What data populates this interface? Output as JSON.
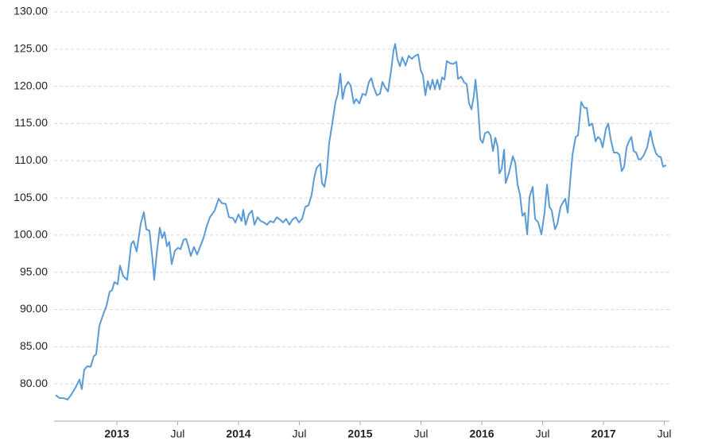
{
  "chart_data": {
    "type": "line",
    "x": [
      2012.497,
      2012.529,
      2012.562,
      2012.595,
      2012.627,
      2012.66,
      2012.693,
      2012.712,
      2012.732,
      2012.758,
      2012.784,
      2012.81,
      2012.83,
      2012.856,
      2012.889,
      2012.915,
      2012.941,
      2012.961,
      2012.98,
      2013.007,
      2013.026,
      2013.052,
      2013.085,
      2013.118,
      2013.137,
      2013.163,
      2013.196,
      2013.222,
      2013.242,
      2013.268,
      2013.294,
      2013.307,
      2013.327,
      2013.353,
      2013.373,
      2013.392,
      2013.412,
      2013.431,
      2013.451,
      2013.477,
      2013.503,
      2013.523,
      2013.549,
      2013.569,
      2013.588,
      2013.608,
      2013.634,
      2013.66,
      2013.686,
      2013.712,
      2013.739,
      2013.765,
      2013.804,
      2013.837,
      2013.863,
      2013.895,
      2013.922,
      2013.954,
      2013.974,
      2014.0,
      2014.026,
      2014.039,
      2014.059,
      2014.085,
      2014.111,
      2014.131,
      2014.157,
      2014.183,
      2014.209,
      2014.235,
      2014.261,
      2014.288,
      2014.314,
      2014.34,
      2014.366,
      2014.392,
      2014.418,
      2014.444,
      2014.471,
      2014.497,
      2014.523,
      2014.549,
      2014.575,
      2014.601,
      2014.621,
      2014.641,
      2014.673,
      2014.686,
      2014.706,
      2014.725,
      2014.745,
      2014.771,
      2014.797,
      2014.817,
      2014.837,
      2014.856,
      2014.876,
      2014.902,
      2014.922,
      2014.948,
      2014.967,
      2014.993,
      2015.02,
      2015.046,
      2015.072,
      2015.092,
      2015.111,
      2015.137,
      2015.163,
      2015.183,
      2015.203,
      2015.229,
      2015.255,
      2015.275,
      2015.288,
      2015.307,
      2015.327,
      2015.346,
      2015.373,
      2015.399,
      2015.425,
      2015.451,
      2015.477,
      2015.497,
      2015.516,
      2015.536,
      2015.556,
      2015.575,
      2015.595,
      2015.614,
      2015.634,
      2015.654,
      2015.673,
      2015.693,
      2015.712,
      2015.739,
      2015.765,
      2015.791,
      2015.804,
      2015.83,
      2015.856,
      2015.876,
      2015.895,
      2015.915,
      2015.935,
      2015.948,
      2015.967,
      2015.987,
      2016.007,
      2016.026,
      2016.052,
      2016.072,
      2016.092,
      2016.111,
      2016.131,
      2016.144,
      2016.163,
      2016.183,
      2016.196,
      2016.222,
      2016.255,
      2016.275,
      2016.294,
      2016.314,
      2016.333,
      2016.353,
      2016.373,
      2016.392,
      2016.418,
      2016.438,
      2016.464,
      2016.49,
      2016.516,
      2016.536,
      2016.556,
      2016.575,
      2016.601,
      2016.621,
      2016.647,
      2016.667,
      2016.686,
      2016.706,
      2016.725,
      2016.745,
      2016.771,
      2016.791,
      2016.817,
      2016.843,
      2016.863,
      2016.882,
      2016.908,
      2016.935,
      2016.954,
      2016.974,
      2016.993,
      2017.02,
      2017.039,
      2017.059,
      2017.085,
      2017.111,
      2017.131,
      2017.15,
      2017.17,
      2017.19,
      2017.209,
      2017.229,
      2017.248,
      2017.268,
      2017.288,
      2017.307,
      2017.333,
      2017.359,
      2017.386,
      2017.405,
      2017.431,
      2017.451,
      2017.471,
      2017.49,
      2017.516
    ],
    "series": [
      {
        "color": "#5b9bd5",
        "values": [
          78.5,
          78.1,
          78.1,
          77.9,
          78.6,
          79.5,
          80.6,
          79.3,
          81.9,
          82.4,
          82.3,
          83.7,
          84.0,
          87.8,
          89.4,
          90.5,
          92.4,
          92.6,
          93.7,
          93.4,
          95.9,
          94.5,
          94.0,
          98.8,
          99.2,
          97.8,
          101.5,
          103.1,
          100.8,
          100.6,
          96.6,
          94.0,
          97.4,
          101.0,
          99.6,
          100.4,
          98.5,
          99.1,
          96.1,
          97.9,
          98.3,
          98.1,
          99.4,
          99.5,
          98.5,
          97.2,
          98.4,
          97.4,
          98.5,
          99.6,
          101.2,
          102.4,
          103.3,
          104.9,
          104.3,
          104.2,
          102.4,
          102.3,
          101.7,
          102.8,
          101.9,
          103.4,
          101.4,
          102.8,
          103.3,
          101.4,
          102.4,
          101.9,
          101.7,
          101.4,
          101.9,
          101.7,
          102.4,
          102.1,
          101.7,
          102.2,
          101.4,
          102.1,
          102.4,
          101.7,
          102.2,
          103.8,
          104.0,
          105.4,
          107.6,
          109.0,
          109.6,
          107.0,
          106.5,
          108.3,
          112.4,
          115.0,
          117.9,
          119.0,
          121.7,
          118.3,
          119.9,
          120.6,
          120.1,
          117.7,
          118.3,
          117.7,
          119.0,
          118.8,
          120.6,
          121.1,
          119.9,
          118.8,
          119.0,
          120.6,
          119.9,
          119.3,
          122.2,
          124.9,
          125.7,
          123.6,
          122.7,
          123.9,
          122.8,
          124.1,
          123.7,
          124.1,
          124.3,
          122.2,
          121.5,
          118.8,
          120.7,
          119.6,
          120.9,
          119.6,
          120.9,
          119.6,
          121.2,
          120.9,
          123.4,
          123.1,
          123.0,
          123.3,
          121.0,
          121.3,
          120.5,
          120.3,
          117.7,
          116.9,
          118.8,
          120.9,
          117.7,
          112.9,
          112.4,
          113.7,
          113.9,
          113.4,
          111.3,
          113.1,
          111.8,
          108.3,
          108.9,
          111.5,
          107.0,
          108.3,
          110.6,
          109.7,
          106.8,
          105.4,
          102.6,
          103.0,
          100.1,
          105.1,
          106.5,
          102.2,
          101.7,
          100.1,
          103.1,
          106.8,
          103.8,
          103.3,
          100.8,
          101.5,
          103.8,
          104.4,
          104.9,
          103.0,
          107.0,
          110.8,
          113.2,
          113.4,
          117.9,
          117.1,
          117.1,
          114.7,
          115.0,
          112.6,
          113.2,
          112.9,
          111.8,
          114.3,
          115.0,
          112.9,
          111.1,
          111.1,
          110.8,
          108.6,
          109.2,
          111.8,
          112.6,
          113.2,
          111.3,
          111.1,
          110.2,
          110.2,
          110.8,
          111.8,
          114.0,
          112.4,
          111.0,
          110.6,
          110.5,
          109.2,
          109.4
        ]
      }
    ],
    "xlim": [
      2012.484,
      2017.542
    ],
    "xticks": [
      2013,
      {
        "value": 2013.5,
        "label": "Jul"
      },
      2014,
      {
        "value": 2014.5,
        "label": "Jul"
      },
      2015,
      {
        "value": 2015.5,
        "label": "Jul"
      },
      2016,
      {
        "value": 2016.5,
        "label": "Jul"
      },
      2017,
      {
        "value": 2017.5,
        "label": "Jul"
      }
    ],
    "ylim": [
      75,
      130
    ],
    "yticks": [
      {
        "value": 80,
        "label": "80.00"
      },
      {
        "value": 85,
        "label": "85.00"
      },
      {
        "value": 90,
        "label": "90.00"
      },
      {
        "value": 95,
        "label": "95.00"
      },
      {
        "value": 100,
        "label": "100.00"
      },
      {
        "value": 105,
        "label": "105.00"
      },
      {
        "value": 110,
        "label": "110.00"
      },
      {
        "value": 115,
        "label": "115.00"
      },
      {
        "value": 120,
        "label": "120.00"
      },
      {
        "value": 125,
        "label": "125.00"
      },
      {
        "value": 130,
        "label": "130.00"
      }
    ],
    "grid": true
  }
}
